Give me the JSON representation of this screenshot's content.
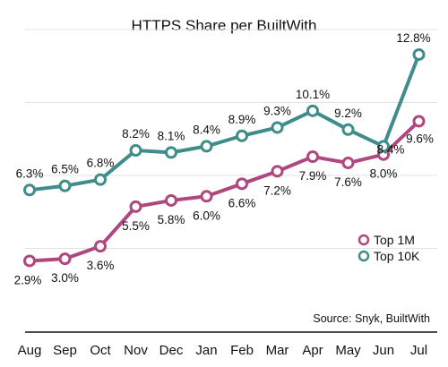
{
  "chart_data": {
    "type": "line",
    "title": "HTTPS Share per BuiltWith",
    "categories": [
      "Aug",
      "Sep",
      "Oct",
      "Nov",
      "Dec",
      "Jan",
      "Feb",
      "Mar",
      "Apr",
      "May",
      "Jun",
      "Jul"
    ],
    "series": [
      {
        "name": "Top 1M",
        "color": "#b0477f",
        "values": [
          2.9,
          3.0,
          3.6,
          5.5,
          5.8,
          6.0,
          6.6,
          7.2,
          7.9,
          7.6,
          8.0,
          9.6
        ],
        "labels": [
          "2.9%",
          "3.0%",
          "3.6%",
          "5.5%",
          "5.8%",
          "6.0%",
          "6.6%",
          "7.2%",
          "7.9%",
          "7.6%",
          "8.0%",
          "9.6%"
        ]
      },
      {
        "name": "Top 10K",
        "color": "#3f8d8a",
        "values": [
          6.3,
          6.5,
          6.8,
          8.2,
          8.1,
          8.4,
          8.9,
          9.3,
          10.1,
          9.2,
          8.4,
          12.8
        ],
        "labels": [
          "6.3%",
          "6.5%",
          "6.8%",
          "8.2%",
          "8.1%",
          "8.4%",
          "8.9%",
          "9.3%",
          "10.1%",
          "9.2%",
          "8.4%",
          "12.8%"
        ]
      }
    ],
    "ylim": [
      0,
      14
    ],
    "grid": true,
    "legend": "bottom-right",
    "source": "Source: Snyk, BuiltWith"
  }
}
